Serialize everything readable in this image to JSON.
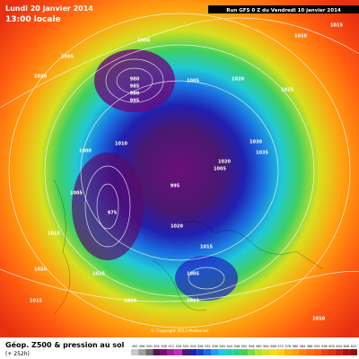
{
  "header": {
    "date": "Lundi 20 janvier 2014",
    "time": "13:00 locale",
    "run": "Run GFS 0 Z du Vendredi 10 janvier 2014"
  },
  "footer": {
    "title": "Géop. Z500 & pression au sol",
    "lead": "(+ 252h)",
    "copyright": "© Copyright 2013 Meteociel"
  },
  "scale": [
    492,
    496,
    500,
    504,
    508,
    512,
    516,
    520,
    524,
    528,
    532,
    536,
    540,
    544,
    548,
    552,
    556,
    560,
    564,
    568,
    572,
    576,
    580,
    584,
    588,
    592,
    596,
    600,
    604,
    608,
    612
  ],
  "isobars": [
    "1000",
    "1005",
    "1020",
    "980",
    "985",
    "990",
    "995",
    "1005",
    "1020",
    "1025",
    "1010",
    "1015",
    "1010",
    "1000",
    "1030",
    "1035",
    "1020",
    "1005",
    "995",
    "1005",
    "975",
    "1015",
    "1020",
    "1020",
    "1025",
    "1030",
    "1015",
    "1005",
    "1010",
    "1015",
    "1025"
  ]
}
